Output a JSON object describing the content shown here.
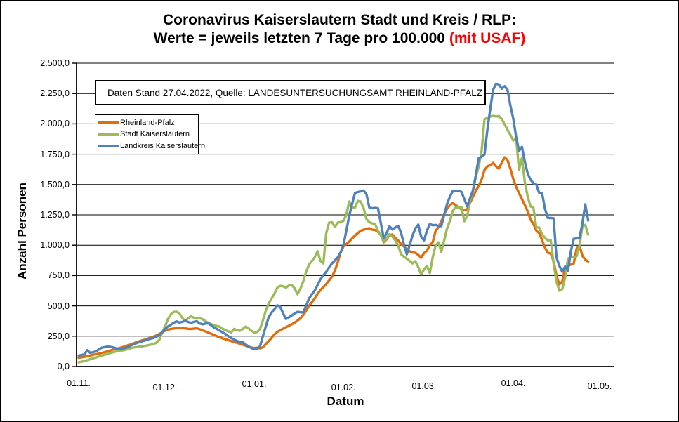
{
  "title": {
    "line1": "Coronavirus Kaiserslautern Stadt und Kreis / RLP:",
    "line2_black": "Werte = jeweils letzten 7 Tage pro 100.000 ",
    "line2_red": "(mit USAF)",
    "red_color": "#FF0000"
  },
  "info_box": {
    "text": "Daten Stand 27.04.2022, Quelle: LANDESUNTERSUCHUNGSAMT RHEINLAND-PFALZ"
  },
  "legend": {
    "items": [
      {
        "label": "Rheinland-Pfalz",
        "color": "#E36C09"
      },
      {
        "label": "Stadt Kaiserslautern",
        "color": "#9BBB59"
      },
      {
        "label": "Landkreis Kaiserslautern",
        "color": "#4F81BD"
      }
    ]
  },
  "axes": {
    "y": {
      "label": "Anzahl Personen",
      "ticks": [
        {
          "label": "0,0",
          "value": 0
        },
        {
          "label": "250,0",
          "value": 250
        },
        {
          "label": "500,0",
          "value": 500
        },
        {
          "label": "750,0",
          "value": 750
        },
        {
          "label": "1.000,0",
          "value": 1000
        },
        {
          "label": "1.250,0",
          "value": 1250
        },
        {
          "label": "1.500,0",
          "value": 1500
        },
        {
          "label": "1.750,0",
          "value": 1750
        },
        {
          "label": "2.000,0",
          "value": 2000
        },
        {
          "label": "2.250,0",
          "value": 2250
        },
        {
          "label": "2.500,0",
          "value": 2500
        }
      ]
    },
    "x": {
      "label": "Datum",
      "ticks": [
        {
          "label": "01.11.",
          "day": 0
        },
        {
          "label": "01.12.",
          "day": 30
        },
        {
          "label": "01.01.",
          "day": 61
        },
        {
          "label": "01.02.",
          "day": 92
        },
        {
          "label": "01.03.",
          "day": 120
        },
        {
          "label": "01.04.",
          "day": 151
        },
        {
          "label": "01.05.",
          "day": 181
        }
      ]
    }
  },
  "chart_data": {
    "type": "line",
    "title": "Coronavirus Kaiserslautern Stadt und Kreis / RLP: Werte = jeweils letzten 7 Tage pro 100.000 (mit USAF)",
    "xlabel": "Datum",
    "ylabel": "Anzahl Personen",
    "x_unit": "days since 01.11.2021 (daily 7-day incidence per 100.000, last value 27.04.2022)",
    "x_domain_days": 181,
    "ylim": [
      0,
      2500
    ],
    "grid": true,
    "legend_position": "upper-left",
    "series": [
      {
        "name": "Rheinland-Pfalz",
        "color": "#E36C09",
        "values": [
          72,
          76,
          80,
          85,
          90,
          96,
          101,
          106,
          112,
          118,
          125,
          132,
          140,
          146,
          151,
          158,
          166,
          174,
          181,
          190,
          200,
          208,
          215,
          222,
          230,
          238,
          246,
          256,
          268,
          282,
          295,
          304,
          310,
          313,
          316,
          320,
          317,
          314,
          311,
          309,
          312,
          315,
          308,
          300,
          290,
          280,
          270,
          260,
          250,
          240,
          232,
          225,
          217,
          210,
          202,
          195,
          188,
          180,
          172,
          164,
          157,
          152,
          155,
          150,
          158,
          185,
          210,
          235,
          265,
          285,
          300,
          312,
          324,
          336,
          348,
          362,
          378,
          398,
          425,
          460,
          500,
          530,
          560,
          600,
          630,
          655,
          680,
          710,
          740,
          790,
          860,
          940,
          990,
          1010,
          1030,
          1055,
          1080,
          1100,
          1120,
          1128,
          1135,
          1140,
          1128,
          1125,
          1110,
          1085,
          1024,
          1050,
          1085,
          1088,
          1060,
          1040,
          1010,
          990,
          970,
          950,
          940,
          937,
          920,
          897,
          935,
          955,
          1000,
          1024,
          1117,
          1150,
          1195,
          1255,
          1300,
          1331,
          1348,
          1330,
          1312,
          1296,
          1290,
          1296,
          1350,
          1400,
          1447,
          1490,
          1540,
          1620,
          1650,
          1660,
          1678,
          1650,
          1632,
          1680,
          1724,
          1700,
          1630,
          1545,
          1480,
          1429,
          1380,
          1331,
          1280,
          1210,
          1175,
          1120,
          1100,
          1042,
          980,
          937,
          930,
          868,
          750,
          677,
          700,
          810,
          830,
          840,
          850,
          972,
          995,
          914,
          880,
          865
        ]
      },
      {
        "name": "Stadt Kaiserslautern",
        "color": "#9BBB59",
        "values": [
          35,
          40,
          46,
          52,
          60,
          67,
          74,
          82,
          90,
          97,
          104,
          111,
          118,
          124,
          129,
          132,
          136,
          143,
          150,
          156,
          160,
          163,
          166,
          170,
          175,
          180,
          186,
          196,
          220,
          280,
          330,
          390,
          430,
          450,
          452,
          438,
          400,
          376,
          396,
          415,
          402,
          396,
          400,
          390,
          375,
          360,
          350,
          340,
          334,
          328,
          312,
          300,
          290,
          281,
          310,
          300,
          295,
          310,
          330,
          315,
          295,
          280,
          285,
          310,
          380,
          460,
          520,
          560,
          600,
          650,
          665,
          662,
          650,
          668,
          672,
          645,
          596,
          640,
          700,
          780,
          839,
          870,
          900,
          950,
          870,
          850,
          1100,
          1186,
          1190,
          1150,
          1186,
          1190,
          1200,
          1250,
          1360,
          1313,
          1310,
          1365,
          1360,
          1305,
          1215,
          1190,
          1180,
          1175,
          1120,
          1080,
          1030,
          1060,
          1090,
          1070,
          1040,
          1000,
          926,
          905,
          890,
          870,
          850,
          868,
          820,
          760,
          800,
          830,
          770,
          900,
          995,
          1024,
          945,
          1040,
          1139,
          1200,
          1284,
          1313,
          1310,
          1315,
          1198,
          1240,
          1371,
          1450,
          1562,
          1650,
          1776,
          2037,
          2050,
          2060,
          2066,
          2060,
          2065,
          2040,
          1996,
          1950,
          1909,
          1863,
          1880,
          1620,
          1718,
          1522,
          1400,
          1320,
          1310,
          1147,
          1145,
          1090,
          1060,
          1040,
          1042,
          849,
          700,
          625,
          637,
          733,
          890,
          905,
          900,
          908,
          1000,
          1157,
          1168,
          1088
        ]
      },
      {
        "name": "Landkreis Kaiserslautern",
        "color": "#4F81BD",
        "values": [
          90,
          95,
          100,
          135,
          112,
          118,
          125,
          140,
          155,
          160,
          165,
          162,
          158,
          150,
          143,
          148,
          152,
          160,
          172,
          182,
          192,
          200,
          208,
          214,
          222,
          230,
          236,
          246,
          258,
          280,
          310,
          330,
          345,
          360,
          372,
          362,
          368,
          378,
          368,
          360,
          368,
          374,
          356,
          348,
          354,
          356,
          340,
          322,
          310,
          296,
          282,
          268,
          250,
          235,
          222,
          210,
          205,
          200,
          182,
          166,
          152,
          142,
          148,
          168,
          250,
          330,
          405,
          445,
          472,
          505,
          492,
          440,
          392,
          405,
          420,
          438,
          450,
          448,
          445,
          500,
          560,
          595,
          626,
          672,
          720,
          752,
          781,
          818,
          850,
          875,
          900,
          940,
          1000,
          1120,
          1240,
          1340,
          1430,
          1438,
          1443,
          1450,
          1420,
          1310,
          1305,
          1308,
          1305,
          1180,
          1060,
          1100,
          1157,
          1130,
          1145,
          1160,
          1105,
          1010,
          925,
          1000,
          1080,
          1139,
          1170,
          1070,
          1040,
          1120,
          1175,
          1165,
          1167,
          1160,
          1157,
          1250,
          1340,
          1400,
          1447,
          1445,
          1448,
          1440,
          1380,
          1320,
          1390,
          1450,
          1580,
          1718,
          1730,
          1747,
          1950,
          2123,
          2280,
          2330,
          2325,
          2290,
          2310,
          2280,
          2150,
          2042,
          1892,
          1776,
          1811,
          1690,
          1591,
          1540,
          1510,
          1500,
          1430,
          1428,
          1300,
          1225,
          1224,
          1222,
          900,
          830,
          781,
          825,
          790,
          950,
          1053,
          1056,
          1060,
          1180,
          1337,
          1204
        ]
      }
    ]
  }
}
